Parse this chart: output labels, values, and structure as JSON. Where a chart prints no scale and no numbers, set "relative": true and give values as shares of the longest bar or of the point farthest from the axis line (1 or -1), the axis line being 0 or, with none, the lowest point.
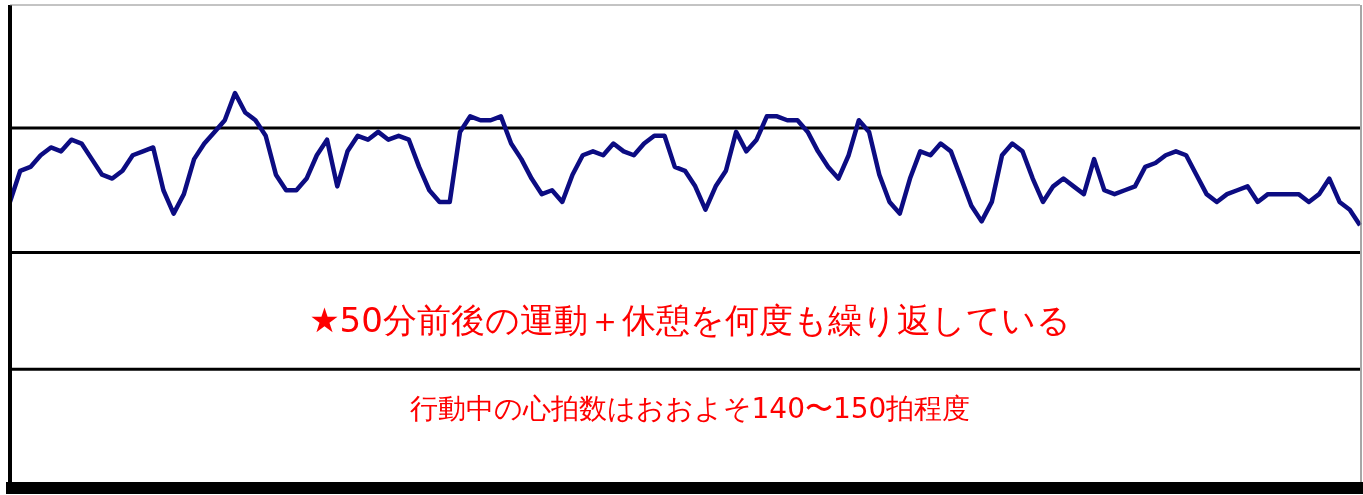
{
  "chart_data": {
    "type": "line",
    "relative": true,
    "categories": [
      null,
      null,
      null,
      null,
      null,
      null,
      null,
      null,
      null,
      null,
      null,
      null,
      null,
      null,
      null,
      null,
      null,
      null,
      null,
      null,
      null,
      null,
      null,
      null,
      null,
      null,
      null,
      null,
      null,
      null,
      null,
      null,
      null,
      null,
      null,
      null,
      null,
      null,
      null,
      null,
      null,
      null,
      null,
      null,
      null,
      null,
      null,
      null,
      null,
      null,
      null,
      null,
      null,
      null,
      null,
      null,
      null,
      null,
      null,
      null,
      null,
      null,
      null,
      null,
      null,
      null,
      null,
      null,
      null,
      null,
      null,
      null,
      null,
      null,
      null,
      null,
      null,
      null,
      null,
      null,
      null,
      null,
      null,
      null,
      null,
      null,
      null,
      null,
      null,
      null,
      null,
      null,
      null,
      null,
      null,
      null,
      null,
      null,
      null,
      null,
      null,
      null,
      null,
      null,
      null,
      null,
      null,
      null,
      null,
      null,
      null,
      null,
      null,
      null,
      null,
      null,
      null,
      null,
      null,
      null,
      null,
      null,
      null,
      null,
      null,
      null,
      null,
      null,
      null,
      null,
      null,
      null,
      null
    ],
    "series": [
      {
        "color": "#0c0c82",
        "values": [
          0.72,
          0.8,
          0.81,
          0.84,
          0.86,
          0.85,
          0.88,
          0.87,
          0.83,
          0.79,
          0.78,
          0.8,
          0.84,
          0.85,
          0.86,
          0.75,
          0.69,
          0.74,
          0.83,
          0.87,
          0.9,
          0.93,
          1.0,
          0.95,
          0.93,
          0.89,
          0.79,
          0.75,
          0.75,
          0.78,
          0.84,
          0.88,
          0.76,
          0.85,
          0.89,
          0.88,
          0.9,
          0.88,
          0.89,
          0.88,
          0.81,
          0.75,
          0.72,
          0.72,
          0.9,
          0.94,
          0.93,
          0.93,
          0.94,
          0.87,
          0.83,
          0.78,
          0.74,
          0.75,
          0.72,
          0.79,
          0.84,
          0.85,
          0.84,
          0.87,
          0.85,
          0.84,
          0.87,
          0.89,
          0.89,
          0.81,
          0.8,
          0.76,
          0.7,
          0.76,
          0.8,
          0.9,
          0.85,
          0.88,
          0.94,
          0.94,
          0.93,
          0.93,
          0.9,
          0.85,
          0.81,
          0.78,
          0.84,
          0.93,
          0.9,
          0.79,
          0.72,
          0.69,
          0.78,
          0.85,
          0.84,
          0.87,
          0.85,
          0.78,
          0.71,
          0.67,
          0.72,
          0.84,
          0.87,
          0.85,
          0.78,
          0.72,
          0.76,
          0.78,
          0.76,
          0.74,
          0.83,
          0.75,
          0.74,
          0.75,
          0.76,
          0.81,
          0.82,
          0.84,
          0.85,
          0.84,
          0.79,
          0.74,
          0.72,
          0.74,
          0.75,
          0.76,
          0.72,
          0.74,
          0.74,
          0.74,
          0.74,
          0.72,
          0.74,
          0.78,
          0.72,
          0.7,
          0.66
        ]
      }
    ],
    "ref_lines": [
      {
        "axis": "y",
        "value": 0.91,
        "color": "#000000"
      },
      {
        "axis": "y",
        "value": 0.59,
        "color": "#000000"
      },
      {
        "axis": "y",
        "value": 0.29,
        "color": "#000000"
      }
    ],
    "annotations": [
      "★50分前後の運動＋休憩を何度も繰り返している",
      "行動中の心拍数はおおよそ140〜150拍程度"
    ]
  }
}
